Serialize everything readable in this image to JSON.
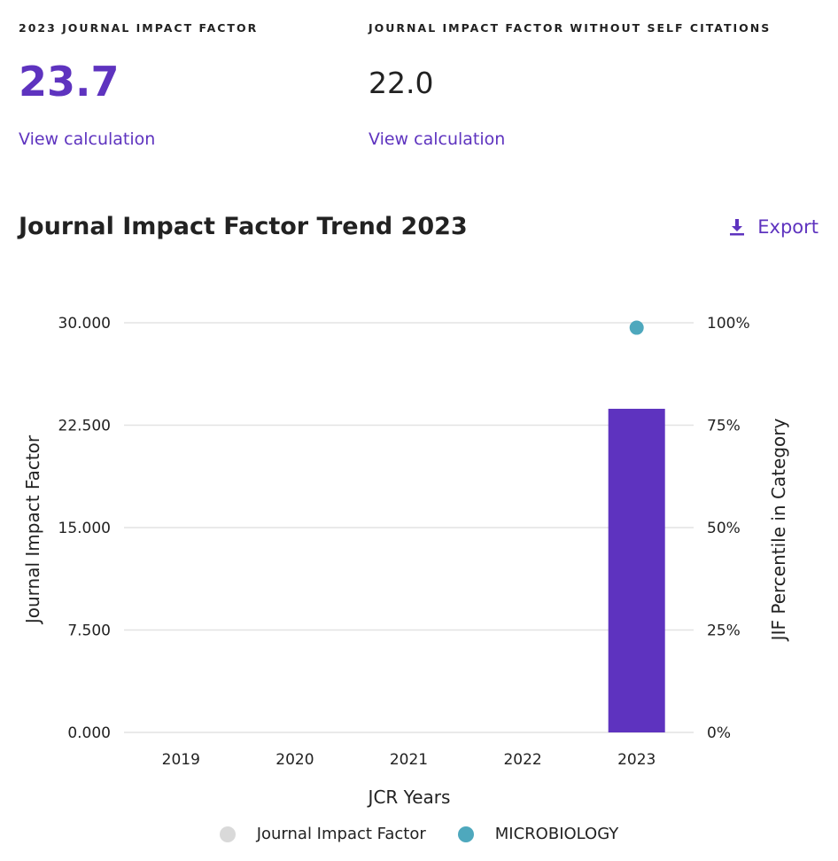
{
  "metrics": {
    "jif": {
      "label": "2023 JOURNAL IMPACT FACTOR",
      "value": "23.7",
      "link": "View calculation"
    },
    "jif_no_self": {
      "label": "JOURNAL IMPACT FACTOR WITHOUT SELF CITATIONS",
      "value": "22.0",
      "link": "View calculation"
    }
  },
  "section": {
    "title": "Journal Impact Factor Trend 2023",
    "export_label": "Export"
  },
  "colors": {
    "accent": "#5e33bf",
    "bar": "#5e33bf",
    "percentile_dot": "#4ea8bd",
    "jif_legend_dot": "#d9d9d9",
    "grid": "#e3e3e3"
  },
  "chart_data": {
    "type": "bar",
    "title": "Journal Impact Factor Trend 2023",
    "xlabel": "JCR Years",
    "ylabel": "Journal Impact Factor",
    "y2label": "JIF Percentile in Category",
    "categories": [
      "2019",
      "2020",
      "2021",
      "2022",
      "2023"
    ],
    "ylim": [
      0,
      30
    ],
    "y_ticks": [
      "0.000",
      "7.500",
      "15.000",
      "22.500",
      "30.000"
    ],
    "y2lim": [
      0,
      100
    ],
    "y2_ticks": [
      "0%",
      "25%",
      "50%",
      "75%",
      "100%"
    ],
    "grid": true,
    "legend_position": "bottom",
    "series": [
      {
        "name": "Journal Impact Factor",
        "kind": "bar",
        "axis": "left",
        "values": [
          null,
          null,
          null,
          null,
          23.7
        ]
      },
      {
        "name": "MICROBIOLOGY",
        "kind": "point",
        "axis": "right",
        "values": [
          null,
          null,
          null,
          null,
          98.8
        ]
      }
    ]
  }
}
